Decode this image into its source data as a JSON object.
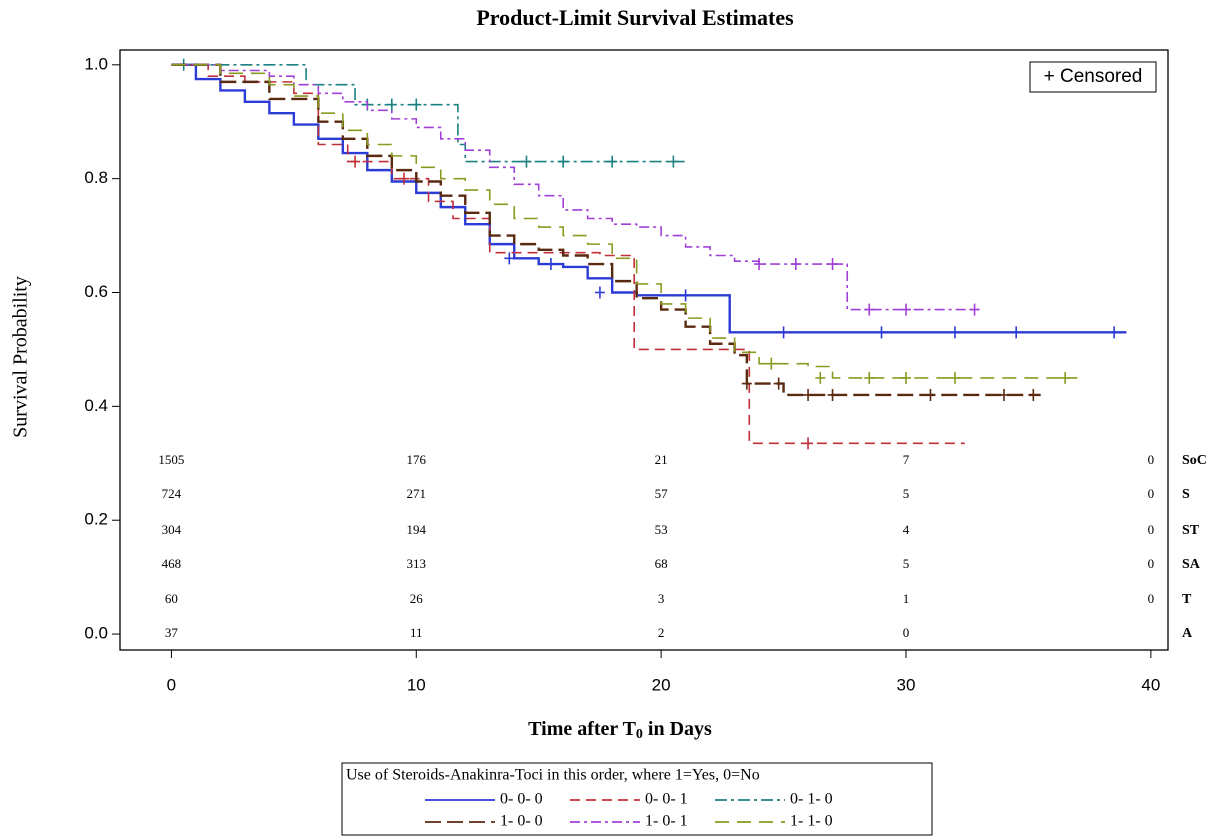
{
  "chart_data": {
    "type": "survival",
    "title": "Product-Limit Survival Estimates",
    "x_label": [
      "Time after T",
      "0",
      " in Days"
    ],
    "y_label": "Survival Probability",
    "xlim": [
      -2.1,
      40.7
    ],
    "ylim": [
      -0.028,
      1.026
    ],
    "xticks": [
      0,
      10,
      20,
      30,
      40
    ],
    "yticks": [
      {
        "value": 0,
        "label": "0.0"
      },
      0.2,
      0.4,
      0.6,
      0.8,
      {
        "value": 1,
        "label": "1.0"
      }
    ],
    "censor_legend": "+ Censored",
    "legend_title": "Use of Steroids-Anakinra-Toci in this order, where 1=Yes, 0=No",
    "series": [
      {
        "name": "0- 0- 0",
        "color": "#2b3bd6",
        "dash": "none",
        "x": [
          0,
          1,
          2,
          3,
          4,
          5,
          6,
          7,
          8,
          9,
          10,
          11,
          12,
          13,
          14,
          15,
          16,
          17,
          18,
          19,
          20,
          22.5,
          22.8,
          39
        ],
        "y": [
          1.0,
          0.975,
          0.955,
          0.935,
          0.915,
          0.895,
          0.87,
          0.845,
          0.815,
          0.795,
          0.775,
          0.75,
          0.72,
          0.685,
          0.66,
          0.65,
          0.645,
          0.625,
          0.6,
          0.595,
          0.595,
          0.595,
          0.53,
          0.53
        ],
        "censored_x": [
          13.8,
          15.5,
          17.5,
          21,
          25,
          29,
          32,
          34.5,
          38.5
        ],
        "censored_y": [
          0.66,
          0.65,
          0.6,
          0.595,
          0.53,
          0.53,
          0.53,
          0.53,
          0.53
        ]
      },
      {
        "name": "0- 0- 1",
        "color": "#c0303a",
        "dash": "10 6",
        "x": [
          0,
          1.5,
          3,
          5,
          6,
          7.2,
          9,
          10.5,
          11.5,
          13,
          17.5,
          18.9,
          21,
          23.6,
          32.4
        ],
        "y": [
          1.0,
          0.98,
          0.97,
          0.95,
          0.86,
          0.83,
          0.8,
          0.76,
          0.73,
          0.67,
          0.665,
          0.5,
          0.5,
          0.335,
          0.335
        ],
        "censored_x": [
          7.5,
          9.5,
          26
        ],
        "censored_y": [
          0.83,
          0.8,
          0.335
        ]
      },
      {
        "name": "0- 1- 0",
        "color": "#1a8080",
        "dash": "12 4 3 4",
        "x": [
          0,
          1,
          5.5,
          7.5,
          11.5,
          11.7,
          12,
          21
        ],
        "y": [
          1.0,
          1.0,
          0.965,
          0.93,
          0.93,
          0.86,
          0.83,
          0.83
        ],
        "censored_x": [
          0.5,
          8,
          9,
          10,
          14.5,
          16,
          18,
          20.5
        ],
        "censored_y": [
          1.0,
          0.93,
          0.93,
          0.93,
          0.83,
          0.83,
          0.83,
          0.83
        ]
      },
      {
        "name": "1- 0- 0",
        "color": "#5a2a10",
        "dash": "16 6",
        "x": [
          0,
          2,
          4,
          6,
          7,
          8,
          9,
          10,
          11,
          12,
          13,
          14,
          15,
          16,
          17,
          18,
          19,
          20,
          21,
          22,
          23,
          23.5,
          25,
          35.5
        ],
        "y": [
          1.0,
          0.97,
          0.94,
          0.9,
          0.87,
          0.84,
          0.815,
          0.795,
          0.77,
          0.74,
          0.7,
          0.685,
          0.675,
          0.665,
          0.65,
          0.62,
          0.59,
          0.57,
          0.54,
          0.51,
          0.49,
          0.44,
          0.42,
          0.42
        ],
        "censored_x": [
          23.5,
          24.8,
          26,
          27,
          31,
          34,
          35.2
        ],
        "censored_y": [
          0.44,
          0.44,
          0.42,
          0.42,
          0.42,
          0.42,
          0.42
        ]
      },
      {
        "name": "1- 0- 1",
        "color": "#a040d8",
        "dash": "10 4 3 4",
        "x": [
          0,
          2,
          4,
          5,
          6,
          7,
          8,
          9,
          10,
          11,
          12,
          13,
          14,
          15,
          16,
          17,
          18,
          19,
          20,
          21,
          22,
          23,
          24,
          27.6,
          33
        ],
        "y": [
          1.0,
          0.99,
          0.98,
          0.965,
          0.95,
          0.935,
          0.92,
          0.905,
          0.89,
          0.87,
          0.85,
          0.82,
          0.79,
          0.77,
          0.745,
          0.73,
          0.72,
          0.715,
          0.7,
          0.68,
          0.665,
          0.655,
          0.65,
          0.57,
          0.57
        ],
        "censored_x": [
          24,
          25.5,
          27,
          28.5,
          30,
          32.8
        ],
        "censored_y": [
          0.65,
          0.65,
          0.65,
          0.57,
          0.57,
          0.57
        ]
      },
      {
        "name": "1- 1- 0",
        "color": "#8a9a20",
        "dash": "14 8",
        "x": [
          0,
          2,
          4,
          5,
          6,
          7,
          8,
          9,
          10,
          11,
          12,
          13,
          14,
          15,
          16,
          17,
          18,
          19,
          20,
          21,
          22,
          23,
          24,
          26,
          27,
          37
        ],
        "y": [
          1.0,
          0.985,
          0.965,
          0.945,
          0.915,
          0.885,
          0.86,
          0.84,
          0.82,
          0.8,
          0.78,
          0.755,
          0.73,
          0.715,
          0.7,
          0.685,
          0.66,
          0.615,
          0.58,
          0.555,
          0.52,
          0.495,
          0.475,
          0.47,
          0.45,
          0.45
        ],
        "censored_x": [
          24.5,
          26.5,
          28.5,
          30,
          32,
          36.5
        ],
        "censored_y": [
          0.475,
          0.45,
          0.45,
          0.45,
          0.45,
          0.45
        ]
      }
    ],
    "risk_table": {
      "times": [
        0,
        10,
        20,
        30,
        40
      ],
      "rows": [
        {
          "label": "SoC",
          "counts": [
            1505,
            176,
            21,
            7,
            0
          ]
        },
        {
          "label": "S",
          "counts": [
            724,
            271,
            57,
            5,
            0
          ]
        },
        {
          "label": "ST",
          "counts": [
            304,
            194,
            53,
            4,
            0
          ]
        },
        {
          "label": "SA",
          "counts": [
            468,
            313,
            68,
            5,
            0
          ]
        },
        {
          "label": "T",
          "counts": [
            60,
            26,
            3,
            1,
            0
          ]
        },
        {
          "label": "A",
          "counts": [
            37,
            11,
            2,
            0,
            null
          ]
        }
      ]
    }
  }
}
